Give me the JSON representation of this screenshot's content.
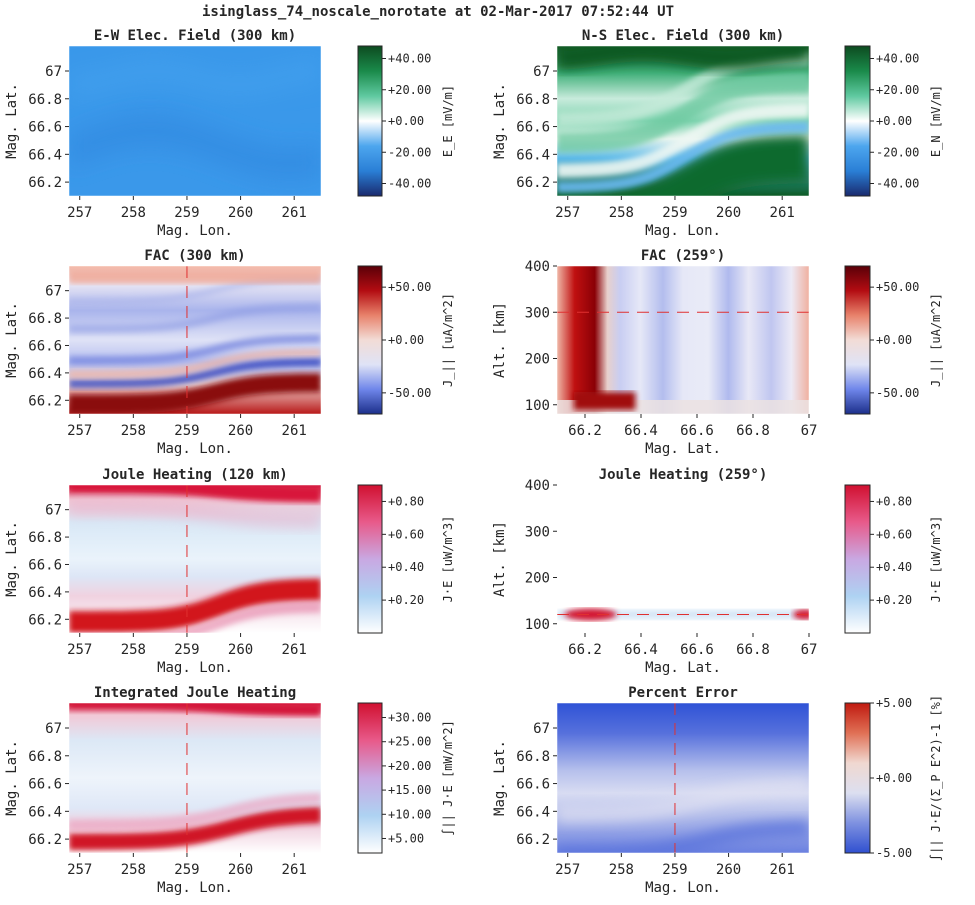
{
  "figure_title": "isinglass_74_noscale_norotate at 02-Mar-2017 07:52:44 UT",
  "colors": {
    "cmap_blue_green": [
      "#1a2a6e",
      "#2a7fd6",
      "#4da6ee",
      "#ffffff",
      "#5fc9a0",
      "#1a8a4a",
      "#0d4b20"
    ],
    "cmap_blue_red": [
      "#1c2f8a",
      "#6f86ea",
      "#dfe3f6",
      "#f2dcd6",
      "#e8826b",
      "#b30c12",
      "#5a0008"
    ],
    "cmap_white_red": [
      "#ffffff",
      "#aed2f2",
      "#c9a8e2",
      "#e85a8a",
      "#d01030"
    ],
    "cmap_pct": [
      "#3050d0",
      "#7e91e0",
      "#dcdff0",
      "#f0d8d0",
      "#e07055",
      "#c01a10"
    ],
    "cut_line": "#e03030"
  },
  "chart_data": [
    {
      "type": "heatmap",
      "title": "E-W Elec. Field (300 km)",
      "xlabel": "Mag. Lon.",
      "ylabel": "Mag. Lat.",
      "xticks": [
        "257",
        "258",
        "259",
        "260",
        "261"
      ],
      "yticks": [
        "66.2",
        "66.4",
        "66.6",
        "66.8",
        "67"
      ],
      "xlim": [
        256.8,
        261.5
      ],
      "ylim": [
        66.1,
        67.18
      ],
      "colorbar": {
        "label": "E_E [mV/m]",
        "ticks": [
          "+40.00",
          "+20.00",
          "+0.00",
          "-20.00",
          "-40.00"
        ],
        "range": [
          -48,
          48
        ]
      },
      "field_summary": "nearly uniform about -25 mV/m"
    },
    {
      "type": "heatmap",
      "title": "N-S Elec. Field (300 km)",
      "xlabel": "Mag. Lon.",
      "ylabel": "Mag. Lat.",
      "xticks": [
        "257",
        "258",
        "259",
        "260",
        "261"
      ],
      "yticks": [
        "66.2",
        "66.4",
        "66.6",
        "66.8",
        "67"
      ],
      "xlim": [
        256.8,
        261.5
      ],
      "ylim": [
        66.1,
        67.18
      ],
      "colorbar": {
        "label": "E_N [mV/m]",
        "ticks": [
          "+40.00",
          "+20.00",
          "+0.00",
          "-20.00",
          "-40.00"
        ],
        "range": [
          -48,
          48
        ]
      },
      "field_summary": "strong positive at top and bottom, wavy weaker bands in middle, negative band near 66.4"
    },
    {
      "type": "heatmap",
      "title": "FAC (300 km)",
      "xlabel": "Mag. Lon.",
      "ylabel": "Mag. Lat.",
      "xticks": [
        "257",
        "258",
        "259",
        "260",
        "261"
      ],
      "yticks": [
        "66.2",
        "66.4",
        "66.6",
        "66.8",
        "67"
      ],
      "xlim": [
        256.8,
        261.5
      ],
      "ylim": [
        66.1,
        67.18
      ],
      "colorbar": {
        "label": "J_|| [uA/m^2]",
        "ticks": [
          "+50.00",
          "+0.00",
          "-50.00"
        ],
        "range": [
          -70,
          70
        ]
      },
      "cut_lon": 259
    },
    {
      "type": "heatmap",
      "title": "FAC (259°)",
      "xlabel": "Mag. Lat.",
      "ylabel": "Alt. [km]",
      "xticks": [
        "66.2",
        "66.4",
        "66.6",
        "66.8",
        "67"
      ],
      "yticks": [
        "100",
        "200",
        "300",
        "400"
      ],
      "xlim": [
        66.1,
        67.0
      ],
      "ylim": [
        80,
        400
      ],
      "colorbar": {
        "label": "J_|| [uA/m^2]",
        "ticks": [
          "+50.00",
          "+0.00",
          "-50.00"
        ],
        "range": [
          -70,
          70
        ]
      },
      "cut_alt": 300
    },
    {
      "type": "heatmap",
      "title": "Joule Heating (120 km)",
      "xlabel": "Mag. Lon.",
      "ylabel": "Mag. Lat.",
      "xticks": [
        "257",
        "258",
        "259",
        "260",
        "261"
      ],
      "yticks": [
        "66.2",
        "66.4",
        "66.6",
        "66.8",
        "67"
      ],
      "xlim": [
        256.8,
        261.5
      ],
      "ylim": [
        66.1,
        67.18
      ],
      "colorbar": {
        "label": "J·E [uW/m^3]",
        "ticks": [
          "+0.80",
          "+0.60",
          "+0.40",
          "+0.20"
        ],
        "range": [
          0,
          0.9
        ]
      },
      "cut_lon": 259
    },
    {
      "type": "heatmap",
      "title": "Joule Heating (259°)",
      "xlabel": "Mag. Lat.",
      "ylabel": "Alt. [km]",
      "xticks": [
        "66.2",
        "66.4",
        "66.6",
        "66.8",
        "67"
      ],
      "yticks": [
        "100",
        "200",
        "300",
        "400"
      ],
      "xlim": [
        66.1,
        67.0
      ],
      "ylim": [
        80,
        400
      ],
      "colorbar": {
        "label": "J·E [uW/m^3]",
        "ticks": [
          "+0.80",
          "+0.60",
          "+0.40",
          "+0.20"
        ],
        "range": [
          0,
          0.9
        ]
      },
      "cut_alt": 120
    },
    {
      "type": "heatmap",
      "title": "Integrated Joule Heating",
      "xlabel": "Mag. Lon.",
      "ylabel": "Mag. Lat.",
      "xticks": [
        "257",
        "258",
        "259",
        "260",
        "261"
      ],
      "yticks": [
        "66.2",
        "66.4",
        "66.6",
        "66.8",
        "67"
      ],
      "xlim": [
        256.8,
        261.5
      ],
      "ylim": [
        66.1,
        67.18
      ],
      "colorbar": {
        "label": "∫|| J·E [mW/m^2]",
        "ticks": [
          "+30.00",
          "+25.00",
          "+20.00",
          "+15.00",
          "+10.00",
          "+5.00"
        ],
        "range": [
          2,
          33
        ]
      },
      "cut_lon": 259
    },
    {
      "type": "heatmap",
      "title": "Percent Error",
      "xlabel": "Mag. Lon.",
      "ylabel": "Mag. Lat.",
      "xticks": [
        "257",
        "258",
        "259",
        "260",
        "261"
      ],
      "yticks": [
        "66.2",
        "66.4",
        "66.6",
        "66.8",
        "67"
      ],
      "xlim": [
        256.8,
        261.5
      ],
      "ylim": [
        66.1,
        67.18
      ],
      "colorbar": {
        "label": "∫|| J·E/(Σ_P E^2)-1 [%]",
        "ticks": [
          "+5.00",
          "+0.00",
          "-5.00"
        ],
        "range": [
          -5,
          5
        ]
      },
      "cut_lon": 259
    }
  ]
}
